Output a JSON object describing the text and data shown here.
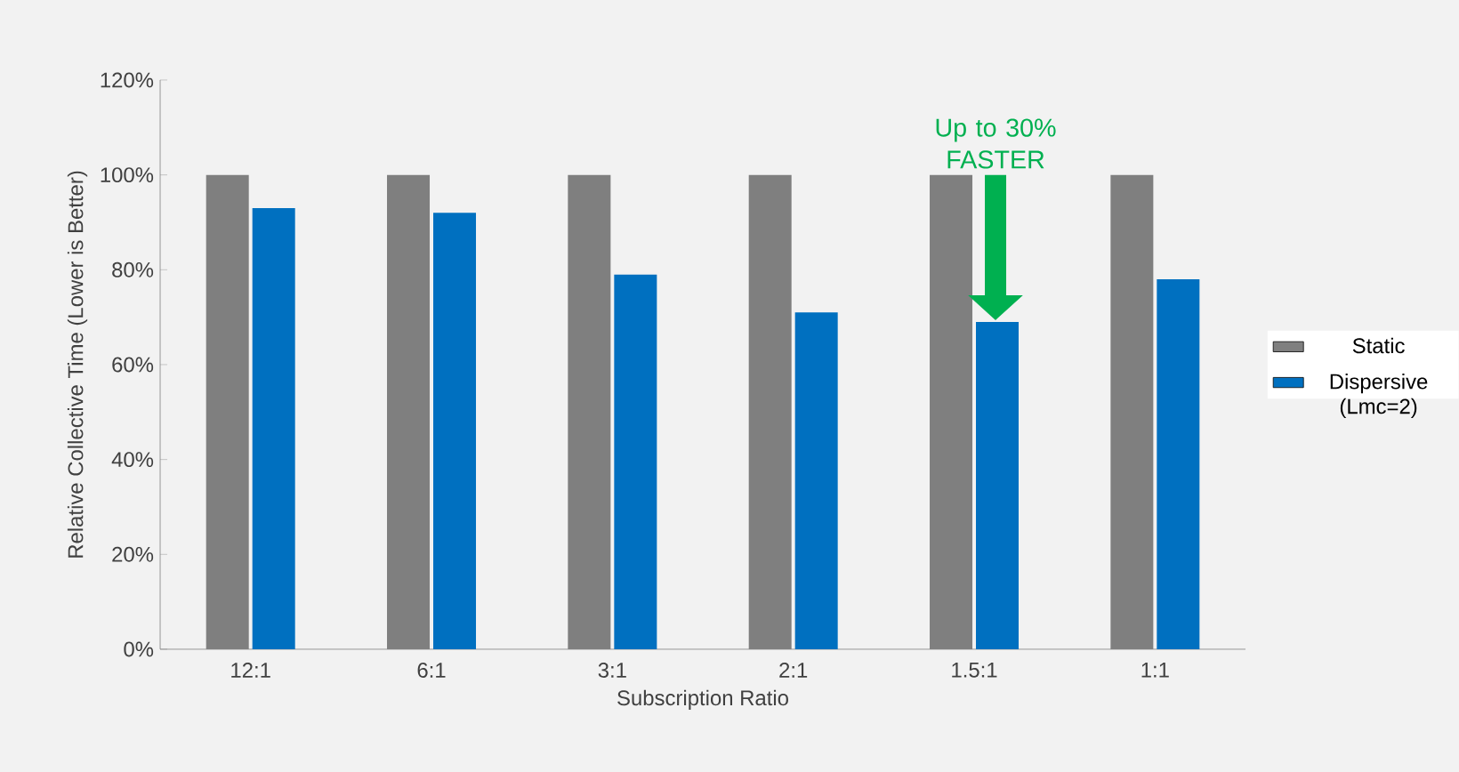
{
  "chart_data": {
    "type": "bar",
    "xlabel": "Subscription Ratio",
    "ylabel": "Relative Collective Time (Lower is Better)",
    "categories": [
      "12:1",
      "6:1",
      "3:1",
      "2:1",
      "1.5:1",
      "1:1"
    ],
    "series": [
      {
        "name": "Static",
        "color": "#7f7f7f",
        "values": [
          100,
          100,
          100,
          100,
          100,
          100
        ]
      },
      {
        "name": "Dispersive (Lmc=2)",
        "color": "#0070c0",
        "values": [
          93,
          92,
          79,
          71,
          69,
          78
        ]
      }
    ],
    "ylim": [
      0,
      120
    ],
    "yticks": [
      {
        "value": 0,
        "label": "0%"
      },
      {
        "value": 20,
        "label": "20%"
      },
      {
        "value": 40,
        "label": "40%"
      },
      {
        "value": 60,
        "label": "60%"
      },
      {
        "value": 80,
        "label": "80%"
      },
      {
        "value": 100,
        "label": "100%"
      },
      {
        "value": 120,
        "label": "120%"
      }
    ],
    "annotations": [
      "Up to 30% FASTER"
    ],
    "grid": false,
    "legend": "right"
  }
}
